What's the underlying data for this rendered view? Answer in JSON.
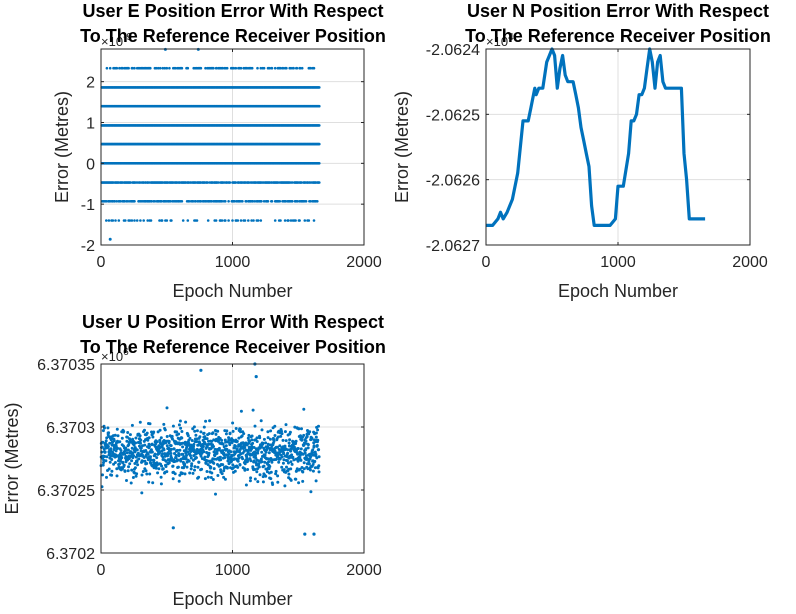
{
  "chart_data": [
    {
      "type": "scatter",
      "title": [
        "User E Position Error With Respect",
        "To The Reference Receiver Position"
      ],
      "xlabel": "Epoch Number",
      "ylabel": "Error (Metres)",
      "xlim": [
        0,
        2000
      ],
      "ylim": [
        -2,
        2.8
      ],
      "xticks": [
        0,
        1000,
        2000
      ],
      "xtick_labels": [
        "0",
        "1000",
        "2000"
      ],
      "yticks": [
        -2,
        -1,
        0,
        1,
        2
      ],
      "ytick_labels": [
        "-2",
        "-1",
        "0",
        "1",
        "2"
      ],
      "exponent_label": "×10",
      "exponent": "-9",
      "grid": true,
      "color": "#0072bd",
      "series": [
        {
          "levels": [
            {
              "y": 2.33,
              "from": 40,
              "to": 1660,
              "density": 0.45
            },
            {
              "y": 1.86,
              "from": 5,
              "to": 1660,
              "density": 1.0
            },
            {
              "y": 1.4,
              "from": 5,
              "to": 1660,
              "density": 1.0
            },
            {
              "y": 0.93,
              "from": 5,
              "to": 1660,
              "density": 1.0
            },
            {
              "y": 0.47,
              "from": 5,
              "to": 1660,
              "density": 1.0
            },
            {
              "y": 0.0,
              "from": 5,
              "to": 1660,
              "density": 1.0
            },
            {
              "y": -0.47,
              "from": 5,
              "to": 1660,
              "density": 0.8
            },
            {
              "y": -0.93,
              "from": 5,
              "to": 1660,
              "density": 0.6
            },
            {
              "y": -1.4,
              "from": 30,
              "to": 1660,
              "density": 0.2
            },
            {
              "y": -1.86,
              "from": 60,
              "to": 80,
              "density": 0.1
            }
          ],
          "extra_points": [
            [
              490,
              2.79
            ],
            [
              740,
              2.79
            ],
            [
              70,
              -1.86
            ]
          ]
        }
      ]
    },
    {
      "type": "line",
      "title": [
        "User N Position Error With Respect",
        "To The Reference Receiver Position"
      ],
      "xlabel": "Epoch Number",
      "ylabel": "Error (Metres)",
      "xlim": [
        0,
        2000
      ],
      "ylim": [
        -2.0627,
        -2.0624
      ],
      "xticks": [
        0,
        1000,
        2000
      ],
      "xtick_labels": [
        "0",
        "1000",
        "2000"
      ],
      "yticks": [
        -2.0627,
        -2.0626,
        -2.0625,
        -2.0624
      ],
      "ytick_labels": [
        "-2.0627",
        "-2.0626",
        "-2.0625",
        "-2.0624"
      ],
      "exponent_label": "×10",
      "exponent": "4",
      "grid": true,
      "color": "#0072bd",
      "series": [
        {
          "x": [
            0,
            50,
            90,
            110,
            130,
            160,
            200,
            240,
            280,
            300,
            320,
            340,
            370,
            380,
            400,
            430,
            460,
            480,
            500,
            520,
            540,
            560,
            580,
            600,
            620,
            640,
            660,
            680,
            700,
            720,
            740,
            760,
            780,
            800,
            820,
            860,
            900,
            940,
            980,
            1000,
            1020,
            1040,
            1080,
            1100,
            1120,
            1140,
            1160,
            1180,
            1200,
            1220,
            1240,
            1260,
            1280,
            1300,
            1320,
            1340,
            1360,
            1380,
            1400,
            1420,
            1440,
            1460,
            1480,
            1500,
            1520,
            1540,
            1560,
            1580,
            1600,
            1620,
            1640,
            1660
          ],
          "y": [
            -2.06267,
            -2.06267,
            -2.06266,
            -2.06265,
            -2.06266,
            -2.06265,
            -2.06263,
            -2.06259,
            -2.06251,
            -2.06251,
            -2.06251,
            -2.06249,
            -2.06246,
            -2.06247,
            -2.06246,
            -2.06246,
            -2.06242,
            -2.06241,
            -2.0624,
            -2.06241,
            -2.06246,
            -2.06243,
            -2.06241,
            -2.06244,
            -2.06245,
            -2.06245,
            -2.06245,
            -2.06247,
            -2.06249,
            -2.06252,
            -2.06254,
            -2.06256,
            -2.06258,
            -2.06264,
            -2.06267,
            -2.06267,
            -2.06267,
            -2.06267,
            -2.06266,
            -2.06261,
            -2.06261,
            -2.06261,
            -2.06256,
            -2.06251,
            -2.06251,
            -2.0625,
            -2.06247,
            -2.06247,
            -2.06246,
            -2.06243,
            -2.0624,
            -2.06242,
            -2.06246,
            -2.06242,
            -2.06241,
            -2.06245,
            -2.06246,
            -2.06246,
            -2.06246,
            -2.06246,
            -2.06246,
            -2.06246,
            -2.06246,
            -2.06256,
            -2.0626,
            -2.06266,
            -2.06266,
            -2.06266,
            -2.06266,
            -2.06266,
            -2.06266,
            -2.06266
          ]
        }
      ]
    },
    {
      "type": "scatter",
      "title": [
        "User U Position Error With Respect",
        "To The Reference Receiver Position"
      ],
      "xlabel": "Epoch Number",
      "ylabel": "Error (Metres)",
      "xlim": [
        0,
        2000
      ],
      "ylim": [
        6.3702,
        6.37035
      ],
      "xticks": [
        0,
        1000,
        2000
      ],
      "xtick_labels": [
        "0",
        "1000",
        "2000"
      ],
      "yticks": [
        6.3702,
        6.37025,
        6.3703,
        6.37035
      ],
      "ytick_labels": [
        "6.3702",
        "6.37025",
        "6.3703",
        "6.37035"
      ],
      "exponent_label": "×10",
      "exponent": "6",
      "grid": true,
      "color": "#0072bd",
      "series": [
        {
          "x_range": [
            0,
            1660
          ],
          "center": 6.37028,
          "spread": 2e-05,
          "count": 1300,
          "outliers": [
            [
              760,
              6.370345
            ],
            [
              1170,
              6.37035
            ],
            [
              1180,
              6.37034
            ],
            [
              1550,
              6.370215
            ],
            [
              1620,
              6.370215
            ],
            [
              550,
              6.37022
            ]
          ]
        }
      ]
    }
  ]
}
